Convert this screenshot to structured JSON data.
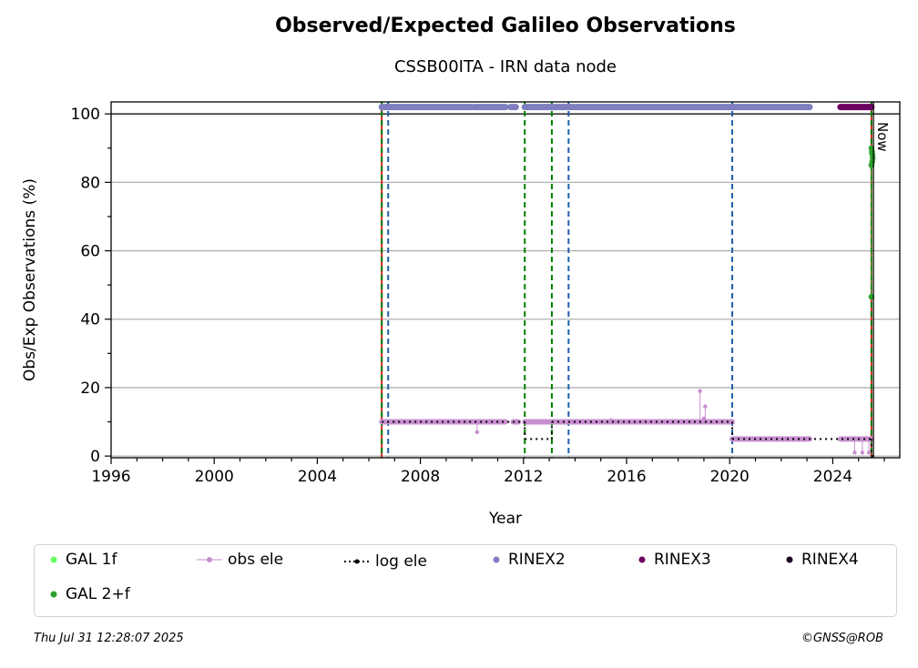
{
  "chart_data": {
    "type": "scatter",
    "title": "Observed/Expected Galileo Observations",
    "subtitle": "CSSB00ITA - IRN data node",
    "xlabel": "Year",
    "ylabel": "Obs/Exp Observations (%)",
    "xlim": [
      1996,
      2026.6
    ],
    "ylim": [
      -0.5,
      103.5
    ],
    "x_ticks": [
      "1996",
      "2000",
      "2004",
      "2008",
      "2012",
      "2016",
      "2020",
      "2024"
    ],
    "y_ticks": [
      "0",
      "20",
      "40",
      "60",
      "80",
      "100"
    ],
    "grid": "y",
    "now_label": "Now",
    "now_x": 2025.58,
    "red_lines_x": [
      2006.5,
      2025.5
    ],
    "green_dashed_x": [
      2006.5,
      2012.05,
      2013.1,
      2025.5
    ],
    "blue_dashed_x": [
      2006.75,
      2013.75,
      2020.1
    ],
    "series": [
      {
        "name": "GAL 1f",
        "color": "#66ff66",
        "segments": []
      },
      {
        "name": "GAL 2+f",
        "color": "#2ca02c",
        "points": [
          [
            2025.5,
            90
          ],
          [
            2025.52,
            89
          ],
          [
            2025.54,
            88
          ],
          [
            2025.55,
            87
          ],
          [
            2025.53,
            86
          ],
          [
            2025.5,
            85
          ],
          [
            2025.52,
            88.5
          ],
          [
            2025.5,
            46.5
          ]
        ]
      },
      {
        "name": "obs ele",
        "color": "#c88fd0",
        "segments": [
          [
            2006.5,
            2011.3,
            10
          ],
          [
            2011.6,
            2011.8,
            10
          ],
          [
            2012.05,
            2020.1,
            10
          ],
          [
            2020.1,
            2023.1,
            5
          ],
          [
            2024.3,
            2025.5,
            5
          ]
        ],
        "spikes": [
          [
            2010.2,
            7
          ],
          [
            2015.4,
            10.5
          ],
          [
            2018.85,
            19
          ],
          [
            2019.05,
            14.5
          ],
          [
            2019.0,
            11
          ],
          [
            2024.85,
            1
          ],
          [
            2025.15,
            1
          ],
          [
            2025.4,
            1
          ]
        ]
      },
      {
        "name": "log ele",
        "color": "#000000",
        "steps": [
          [
            2006.5,
            2012.05,
            10
          ],
          [
            2012.05,
            2013.1,
            5
          ],
          [
            2013.1,
            2020.1,
            10
          ],
          [
            2020.1,
            2025.5,
            5
          ],
          [
            2025.5,
            2025.6,
            0
          ]
        ]
      },
      {
        "name": "RINEX2",
        "color": "#7f7fbf",
        "segments": [
          [
            2006.5,
            2010.0,
            102
          ],
          [
            2010.1,
            2011.3,
            102
          ],
          [
            2011.5,
            2011.7,
            102
          ],
          [
            2012.05,
            2023.1,
            102
          ]
        ]
      },
      {
        "name": "RINEX3",
        "color": "#6b0060",
        "segments": [
          [
            2024.3,
            2025.5,
            102
          ]
        ]
      },
      {
        "name": "RINEX4",
        "color": "#1a0020",
        "segments": []
      }
    ]
  },
  "legend": [
    {
      "label": "GAL 1f",
      "type": "dot",
      "color": "#66ff66"
    },
    {
      "label": "obs ele",
      "type": "line-dot",
      "color": "#c88fd0"
    },
    {
      "label": "log ele",
      "type": "dotted-line",
      "color": "#000000"
    },
    {
      "label": "RINEX2",
      "type": "dot",
      "color": "#7f7fbf"
    },
    {
      "label": "RINEX3",
      "type": "dot",
      "color": "#6b0060"
    },
    {
      "label": "RINEX4",
      "type": "dot",
      "color": "#1a0020"
    },
    {
      "label": "GAL 2+f",
      "type": "dot",
      "color": "#2ca02c"
    }
  ],
  "footer": {
    "timestamp": "Thu Jul 31 12:28:07 2025",
    "credit": "©GNSS@ROB"
  }
}
